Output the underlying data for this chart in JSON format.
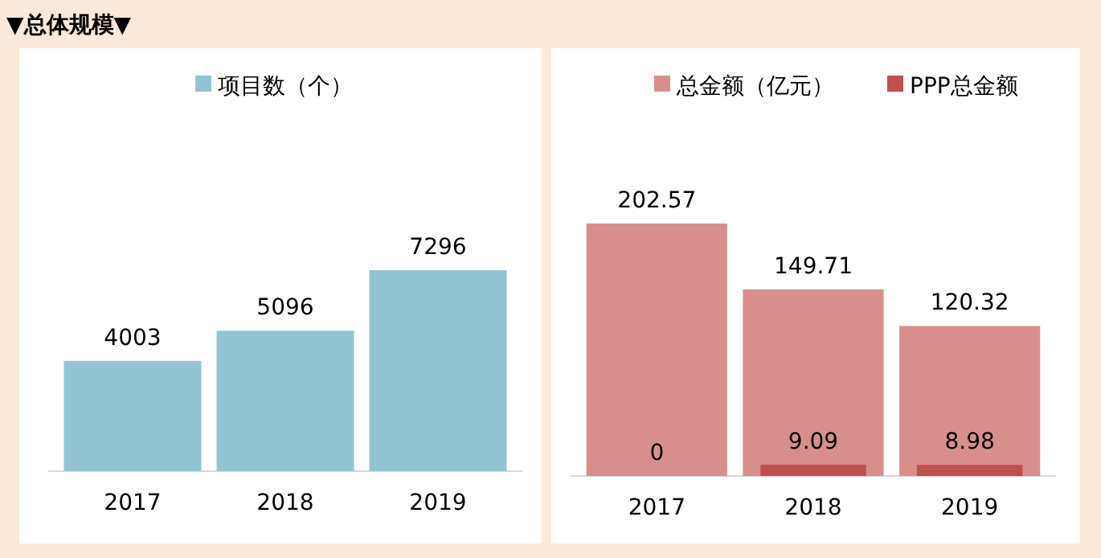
{
  "chart_data": [
    {
      "type": "bar",
      "title": "▼总体规模▼",
      "categories": [
        "2017",
        "2018",
        "2019"
      ],
      "legend": "top",
      "data_labels": true,
      "series": [
        {
          "name": "项目数（个）",
          "color": "#93c4d4",
          "values": [
            4003,
            5096,
            7296
          ]
        }
      ]
    },
    {
      "type": "bar",
      "categories": [
        "2017",
        "2018",
        "2019"
      ],
      "legend": "top",
      "data_labels": true,
      "series": [
        {
          "name": "总金额（亿元）",
          "color": "#d88f8c",
          "values": [
            202.57,
            149.71,
            120.32
          ]
        },
        {
          "name": "PPP总金额",
          "color": "#c0504d",
          "values": [
            0,
            9.09,
            8.98
          ]
        }
      ]
    }
  ]
}
